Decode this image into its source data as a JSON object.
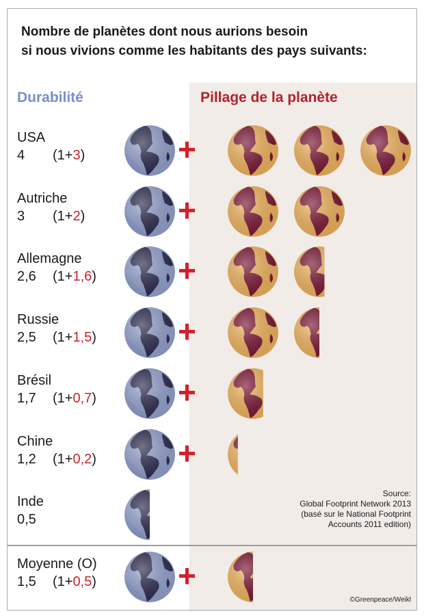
{
  "title_line1": "Nombre de planètes dont nous aurions besoin",
  "title_line2": "si nous vivions comme les habitants des pays suivants:",
  "headers": {
    "durability": "Durabilité",
    "pillage": "Pillage de la planète"
  },
  "colors": {
    "durability_text": "#7b8fc6",
    "pillage_text": "#b5212b",
    "plus": "#d3202b",
    "blue_globe_ocean": "#8d9ccc",
    "blue_globe_land": "#2c2a4e",
    "orange_globe_ocean": "#f2b55e",
    "orange_globe_land": "#7a1634",
    "pillage_panel": "#f1ece8"
  },
  "icons": {
    "durability": "earth-globe-blue-icon",
    "pillage": "earth-globe-orange-icon",
    "plus": "plus-icon"
  },
  "chart_data": {
    "type": "pictogram",
    "unit": "planètes",
    "rows": [
      {
        "country": "USA",
        "total": "4",
        "base": "1",
        "pillage": "3",
        "total_value": 4,
        "sustainable_value": 1,
        "pillage_value": 3
      },
      {
        "country": "Autriche",
        "total": "3",
        "base": "1",
        "pillage": "2",
        "total_value": 3,
        "sustainable_value": 1,
        "pillage_value": 2
      },
      {
        "country": "Allemagne",
        "total": "2,6",
        "base": "1",
        "pillage": "1,6",
        "total_value": 2.6,
        "sustainable_value": 1,
        "pillage_value": 1.6
      },
      {
        "country": "Russie",
        "total": "2,5",
        "base": "1",
        "pillage": "1,5",
        "total_value": 2.5,
        "sustainable_value": 1,
        "pillage_value": 1.5
      },
      {
        "country": "Brésil",
        "total": "1,7",
        "base": "1",
        "pillage": "0,7",
        "total_value": 1.7,
        "sustainable_value": 1,
        "pillage_value": 0.7
      },
      {
        "country": "Chine",
        "total": "1,2",
        "base": "1",
        "pillage": "0,2",
        "total_value": 1.2,
        "sustainable_value": 1,
        "pillage_value": 0.2
      },
      {
        "country": "Inde",
        "total": "0,5",
        "total_value": 0.5,
        "sustainable_value": 0.5,
        "pillage_value": 0
      }
    ],
    "average": {
      "country": "Moyenne (O)",
      "total": "1,5",
      "base": "1",
      "pillage": "0,5",
      "total_value": 1.5,
      "sustainable_value": 1,
      "pillage_value": 0.5
    }
  },
  "source": {
    "line1": "Source:",
    "line2": "Global Footprint Network 2013",
    "line3": "(basé sur le National Footprint",
    "line4": "Accounts 2011 edition)"
  },
  "credit": "©Greenpeace/Weikl"
}
